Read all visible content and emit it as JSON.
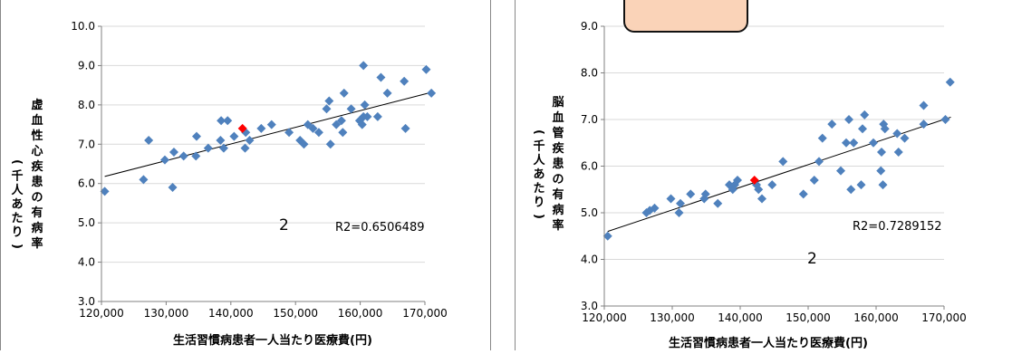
{
  "chart_data": [
    {
      "type": "scatter",
      "xlabel": "生活習慣病患者一人当たり医療費(円)",
      "ylabel_main": "虚血性心疾患の有病率",
      "ylabel_unit": "(千人あたり)",
      "xlim": [
        120000,
        170000
      ],
      "ylim": [
        3.0,
        10.0
      ],
      "x_ticks": [
        120000,
        130000,
        140000,
        150000,
        160000,
        170000
      ],
      "x_tick_labels": [
        "120,000",
        "130,000",
        "140,000",
        "150,000",
        "160,000",
        "170,000"
      ],
      "y_ticks": [
        3,
        4,
        5,
        6,
        7,
        8,
        9,
        10
      ],
      "y_tick_labels": [
        "3.0",
        "4.0",
        "5.0",
        "6.0",
        "7.0",
        "8.0",
        "9.0",
        "10.0"
      ],
      "r2_text": "R2=0.6506489",
      "annotation": "2",
      "point_color": "#4F81BD",
      "highlight_color": "#FF0000",
      "trendline": [
        [
          120500,
          6.18
        ],
        [
          171000,
          8.32
        ]
      ],
      "points": [
        [
          120500,
          5.8
        ],
        [
          126500,
          6.1
        ],
        [
          127300,
          7.1
        ],
        [
          129800,
          6.6
        ],
        [
          131000,
          5.9
        ],
        [
          131200,
          6.8
        ],
        [
          132700,
          6.7
        ],
        [
          134600,
          6.7
        ],
        [
          134700,
          7.2
        ],
        [
          136500,
          6.9
        ],
        [
          138400,
          7.1
        ],
        [
          138500,
          7.6
        ],
        [
          138900,
          6.9
        ],
        [
          139500,
          7.6
        ],
        [
          140500,
          7.2
        ],
        [
          142200,
          6.9
        ],
        [
          142300,
          7.3
        ],
        [
          142900,
          7.1
        ],
        [
          144700,
          7.4
        ],
        [
          146300,
          7.5
        ],
        [
          149000,
          7.3
        ],
        [
          150700,
          7.1
        ],
        [
          151300,
          7.0
        ],
        [
          151900,
          7.5
        ],
        [
          152700,
          7.4
        ],
        [
          153600,
          7.3
        ],
        [
          154800,
          7.9
        ],
        [
          155200,
          8.1
        ],
        [
          155400,
          7.0
        ],
        [
          156300,
          7.5
        ],
        [
          157100,
          7.6
        ],
        [
          157300,
          7.3
        ],
        [
          157500,
          8.3
        ],
        [
          158600,
          7.9
        ],
        [
          159900,
          7.6
        ],
        [
          160300,
          7.5
        ],
        [
          160500,
          9.0
        ],
        [
          160500,
          7.7
        ],
        [
          160700,
          8.0
        ],
        [
          161100,
          7.7
        ],
        [
          162700,
          7.7
        ],
        [
          163200,
          8.7
        ],
        [
          164200,
          8.3
        ],
        [
          166800,
          8.6
        ],
        [
          167000,
          7.4
        ],
        [
          170200,
          8.9
        ],
        [
          171000,
          8.3
        ]
      ],
      "highlight": [
        [
          141800,
          7.4
        ]
      ]
    },
    {
      "type": "scatter",
      "xlabel": "生活習慣病患者一人当たり医療費(円)",
      "ylabel_main": "脳血管疾患の有病率",
      "ylabel_unit": "(千人あたり)",
      "xlim": [
        120000,
        170000
      ],
      "ylim": [
        3.0,
        9.0
      ],
      "x_ticks": [
        120000,
        130000,
        140000,
        150000,
        160000,
        170000
      ],
      "x_tick_labels": [
        "120,000",
        "130,000",
        "140,000",
        "150,000",
        "160,000",
        "170,000"
      ],
      "y_ticks": [
        3,
        4,
        5,
        6,
        7,
        8,
        9
      ],
      "y_tick_labels": [
        "3.0",
        "4.0",
        "5.0",
        "6.0",
        "7.0",
        "8.0",
        "9.0"
      ],
      "r2_text": "R2=0.7289152",
      "annotation": "2",
      "point_color": "#4F81BD",
      "highlight_color": "#FF0000",
      "trendline": [
        [
          120500,
          4.6
        ],
        [
          171000,
          7.05
        ]
      ],
      "points": [
        [
          120500,
          4.5
        ],
        [
          126200,
          5.0
        ],
        [
          126700,
          5.05
        ],
        [
          127400,
          5.1
        ],
        [
          129800,
          5.3
        ],
        [
          131000,
          5.0
        ],
        [
          131200,
          5.2
        ],
        [
          132700,
          5.4
        ],
        [
          134700,
          5.3
        ],
        [
          134900,
          5.4
        ],
        [
          136700,
          5.2
        ],
        [
          138400,
          5.6
        ],
        [
          138900,
          5.5
        ],
        [
          139200,
          5.6
        ],
        [
          139600,
          5.7
        ],
        [
          142400,
          5.6
        ],
        [
          142700,
          5.5
        ],
        [
          143200,
          5.3
        ],
        [
          144700,
          5.6
        ],
        [
          146300,
          6.1
        ],
        [
          149300,
          5.4
        ],
        [
          150900,
          5.7
        ],
        [
          151600,
          6.1
        ],
        [
          152100,
          6.6
        ],
        [
          153500,
          6.9
        ],
        [
          154800,
          5.9
        ],
        [
          155600,
          6.5
        ],
        [
          156000,
          7.0
        ],
        [
          156300,
          5.5
        ],
        [
          156700,
          6.5
        ],
        [
          157800,
          5.6
        ],
        [
          158000,
          6.8
        ],
        [
          158300,
          7.1
        ],
        [
          159600,
          6.5
        ],
        [
          160700,
          5.9
        ],
        [
          160800,
          6.3
        ],
        [
          161000,
          5.6
        ],
        [
          161100,
          6.9
        ],
        [
          161300,
          6.8
        ],
        [
          163100,
          6.7
        ],
        [
          163300,
          6.3
        ],
        [
          164200,
          6.6
        ],
        [
          167000,
          6.9
        ],
        [
          167000,
          7.3
        ],
        [
          170200,
          7.0
        ],
        [
          170900,
          7.8
        ]
      ],
      "highlight": [
        [
          142100,
          5.7
        ]
      ]
    }
  ]
}
